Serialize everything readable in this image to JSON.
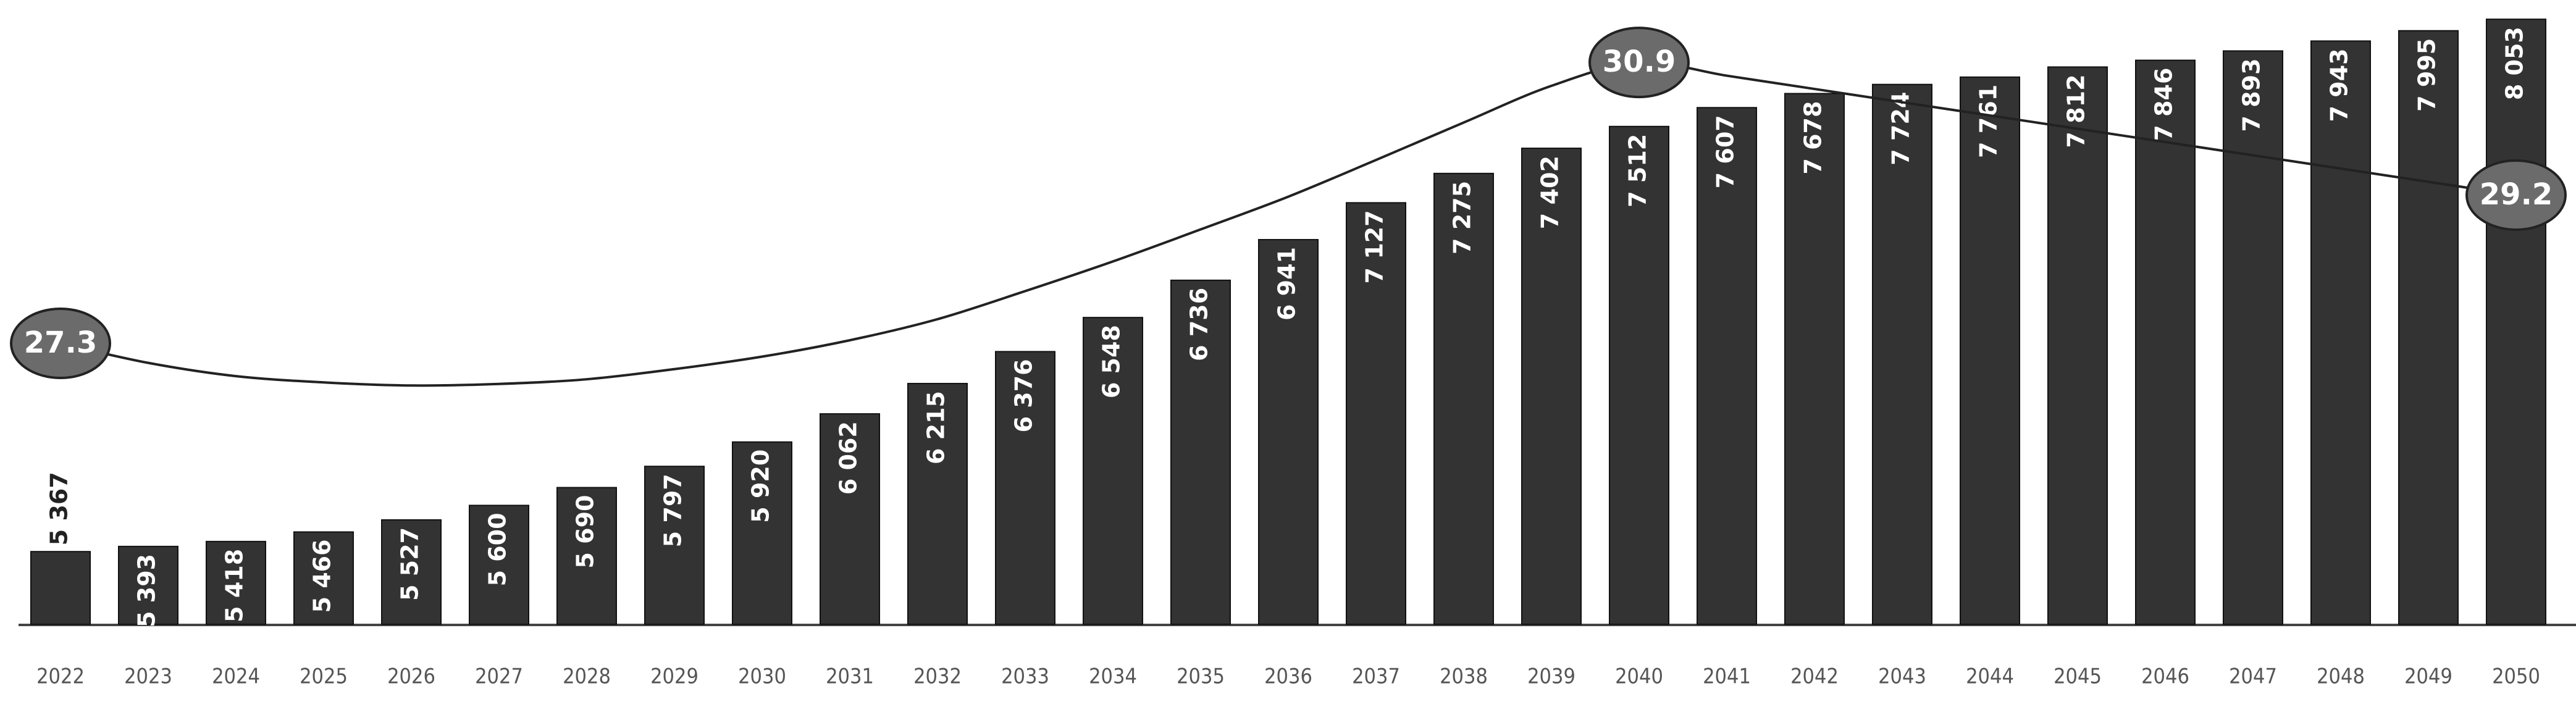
{
  "chart_data": {
    "type": "bar",
    "categories": [
      "2022",
      "2023",
      "2024",
      "2025",
      "2026",
      "2027",
      "2028",
      "2029",
      "2030",
      "2031",
      "2032",
      "2033",
      "2034",
      "2035",
      "2036",
      "2037",
      "2038",
      "2039",
      "2040",
      "2041",
      "2042",
      "2043",
      "2044",
      "2045",
      "2046",
      "2047",
      "2048",
      "2049",
      "2050"
    ],
    "series": [
      {
        "type": "bar",
        "color": "#333333",
        "values": [
          5367,
          5393,
          5418,
          5466,
          5527,
          5600,
          5690,
          5797,
          5920,
          6062,
          6215,
          6376,
          6548,
          6736,
          6941,
          7127,
          7275,
          7402,
          7512,
          7607,
          7678,
          7724,
          7761,
          7812,
          7846,
          7893,
          7943,
          7995,
          8053
        ],
        "value_labels": [
          "5 367",
          "5 393",
          "5 418",
          "5 466",
          "5 527",
          "5 600",
          "5 690",
          "5 797",
          "5 920",
          "6 062",
          "6 215",
          "6 376",
          "6 548",
          "6 736",
          "6 941",
          "7 127",
          "7 275",
          "7 402",
          "7 512",
          "7 607",
          "7 678",
          "7 724",
          "7 761",
          "7 812",
          "7 846",
          "7 893",
          "7 943",
          "7 995",
          "8 053"
        ]
      },
      {
        "type": "line",
        "axis": "y2",
        "color": "#222222",
        "marker_color": "#6b6b6b",
        "values": [
          27.3,
          27.05,
          26.88,
          26.8,
          26.76,
          26.78,
          26.84,
          26.97,
          27.13,
          27.34,
          27.61,
          27.97,
          28.35,
          28.76,
          29.18,
          29.65,
          30.13,
          30.6,
          30.9,
          30.73,
          30.56,
          30.39,
          30.22,
          30.05,
          29.88,
          29.71,
          29.54,
          29.37,
          29.2
        ],
        "value_labels": [
          "27.3",
          null,
          null,
          null,
          null,
          null,
          null,
          null,
          null,
          null,
          null,
          null,
          null,
          null,
          null,
          null,
          null,
          null,
          "30.9",
          null,
          null,
          null,
          null,
          null,
          null,
          null,
          null,
          null,
          "29.2"
        ]
      }
    ],
    "ylim": [
      5000,
      8150
    ],
    "y2lim": [
      23.7,
      31.7
    ],
    "grid": false
  }
}
